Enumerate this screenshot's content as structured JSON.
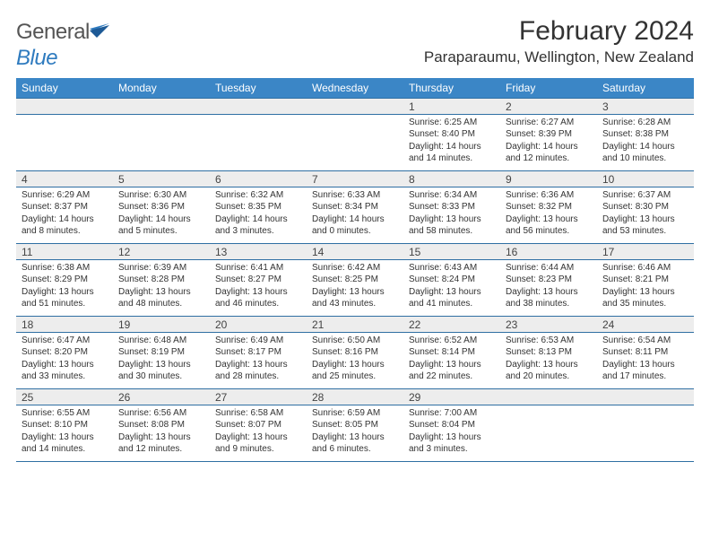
{
  "logo": {
    "word1": "General",
    "word2": "Blue"
  },
  "title": "February 2024",
  "location": "Paraparaumu, Wellington, New Zealand",
  "colors": {
    "header_bg": "#3b86c6",
    "header_text": "#ffffff",
    "daynum_bg": "#ededed",
    "border": "#2f6fa3",
    "text": "#333333",
    "logo_gray": "#555555",
    "logo_blue": "#2f7bbf"
  },
  "day_headers": [
    "Sunday",
    "Monday",
    "Tuesday",
    "Wednesday",
    "Thursday",
    "Friday",
    "Saturday"
  ],
  "weeks": [
    [
      null,
      null,
      null,
      null,
      {
        "n": "1",
        "sunrise": "6:25 AM",
        "sunset": "8:40 PM",
        "daylight": "14 hours and 14 minutes."
      },
      {
        "n": "2",
        "sunrise": "6:27 AM",
        "sunset": "8:39 PM",
        "daylight": "14 hours and 12 minutes."
      },
      {
        "n": "3",
        "sunrise": "6:28 AM",
        "sunset": "8:38 PM",
        "daylight": "14 hours and 10 minutes."
      }
    ],
    [
      {
        "n": "4",
        "sunrise": "6:29 AM",
        "sunset": "8:37 PM",
        "daylight": "14 hours and 8 minutes."
      },
      {
        "n": "5",
        "sunrise": "6:30 AM",
        "sunset": "8:36 PM",
        "daylight": "14 hours and 5 minutes."
      },
      {
        "n": "6",
        "sunrise": "6:32 AM",
        "sunset": "8:35 PM",
        "daylight": "14 hours and 3 minutes."
      },
      {
        "n": "7",
        "sunrise": "6:33 AM",
        "sunset": "8:34 PM",
        "daylight": "14 hours and 0 minutes."
      },
      {
        "n": "8",
        "sunrise": "6:34 AM",
        "sunset": "8:33 PM",
        "daylight": "13 hours and 58 minutes."
      },
      {
        "n": "9",
        "sunrise": "6:36 AM",
        "sunset": "8:32 PM",
        "daylight": "13 hours and 56 minutes."
      },
      {
        "n": "10",
        "sunrise": "6:37 AM",
        "sunset": "8:30 PM",
        "daylight": "13 hours and 53 minutes."
      }
    ],
    [
      {
        "n": "11",
        "sunrise": "6:38 AM",
        "sunset": "8:29 PM",
        "daylight": "13 hours and 51 minutes."
      },
      {
        "n": "12",
        "sunrise": "6:39 AM",
        "sunset": "8:28 PM",
        "daylight": "13 hours and 48 minutes."
      },
      {
        "n": "13",
        "sunrise": "6:41 AM",
        "sunset": "8:27 PM",
        "daylight": "13 hours and 46 minutes."
      },
      {
        "n": "14",
        "sunrise": "6:42 AM",
        "sunset": "8:25 PM",
        "daylight": "13 hours and 43 minutes."
      },
      {
        "n": "15",
        "sunrise": "6:43 AM",
        "sunset": "8:24 PM",
        "daylight": "13 hours and 41 minutes."
      },
      {
        "n": "16",
        "sunrise": "6:44 AM",
        "sunset": "8:23 PM",
        "daylight": "13 hours and 38 minutes."
      },
      {
        "n": "17",
        "sunrise": "6:46 AM",
        "sunset": "8:21 PM",
        "daylight": "13 hours and 35 minutes."
      }
    ],
    [
      {
        "n": "18",
        "sunrise": "6:47 AM",
        "sunset": "8:20 PM",
        "daylight": "13 hours and 33 minutes."
      },
      {
        "n": "19",
        "sunrise": "6:48 AM",
        "sunset": "8:19 PM",
        "daylight": "13 hours and 30 minutes."
      },
      {
        "n": "20",
        "sunrise": "6:49 AM",
        "sunset": "8:17 PM",
        "daylight": "13 hours and 28 minutes."
      },
      {
        "n": "21",
        "sunrise": "6:50 AM",
        "sunset": "8:16 PM",
        "daylight": "13 hours and 25 minutes."
      },
      {
        "n": "22",
        "sunrise": "6:52 AM",
        "sunset": "8:14 PM",
        "daylight": "13 hours and 22 minutes."
      },
      {
        "n": "23",
        "sunrise": "6:53 AM",
        "sunset": "8:13 PM",
        "daylight": "13 hours and 20 minutes."
      },
      {
        "n": "24",
        "sunrise": "6:54 AM",
        "sunset": "8:11 PM",
        "daylight": "13 hours and 17 minutes."
      }
    ],
    [
      {
        "n": "25",
        "sunrise": "6:55 AM",
        "sunset": "8:10 PM",
        "daylight": "13 hours and 14 minutes."
      },
      {
        "n": "26",
        "sunrise": "6:56 AM",
        "sunset": "8:08 PM",
        "daylight": "13 hours and 12 minutes."
      },
      {
        "n": "27",
        "sunrise": "6:58 AM",
        "sunset": "8:07 PM",
        "daylight": "13 hours and 9 minutes."
      },
      {
        "n": "28",
        "sunrise": "6:59 AM",
        "sunset": "8:05 PM",
        "daylight": "13 hours and 6 minutes."
      },
      {
        "n": "29",
        "sunrise": "7:00 AM",
        "sunset": "8:04 PM",
        "daylight": "13 hours and 3 minutes."
      },
      null,
      null
    ]
  ],
  "labels": {
    "sunrise": "Sunrise: ",
    "sunset": "Sunset: ",
    "daylight": "Daylight: "
  }
}
